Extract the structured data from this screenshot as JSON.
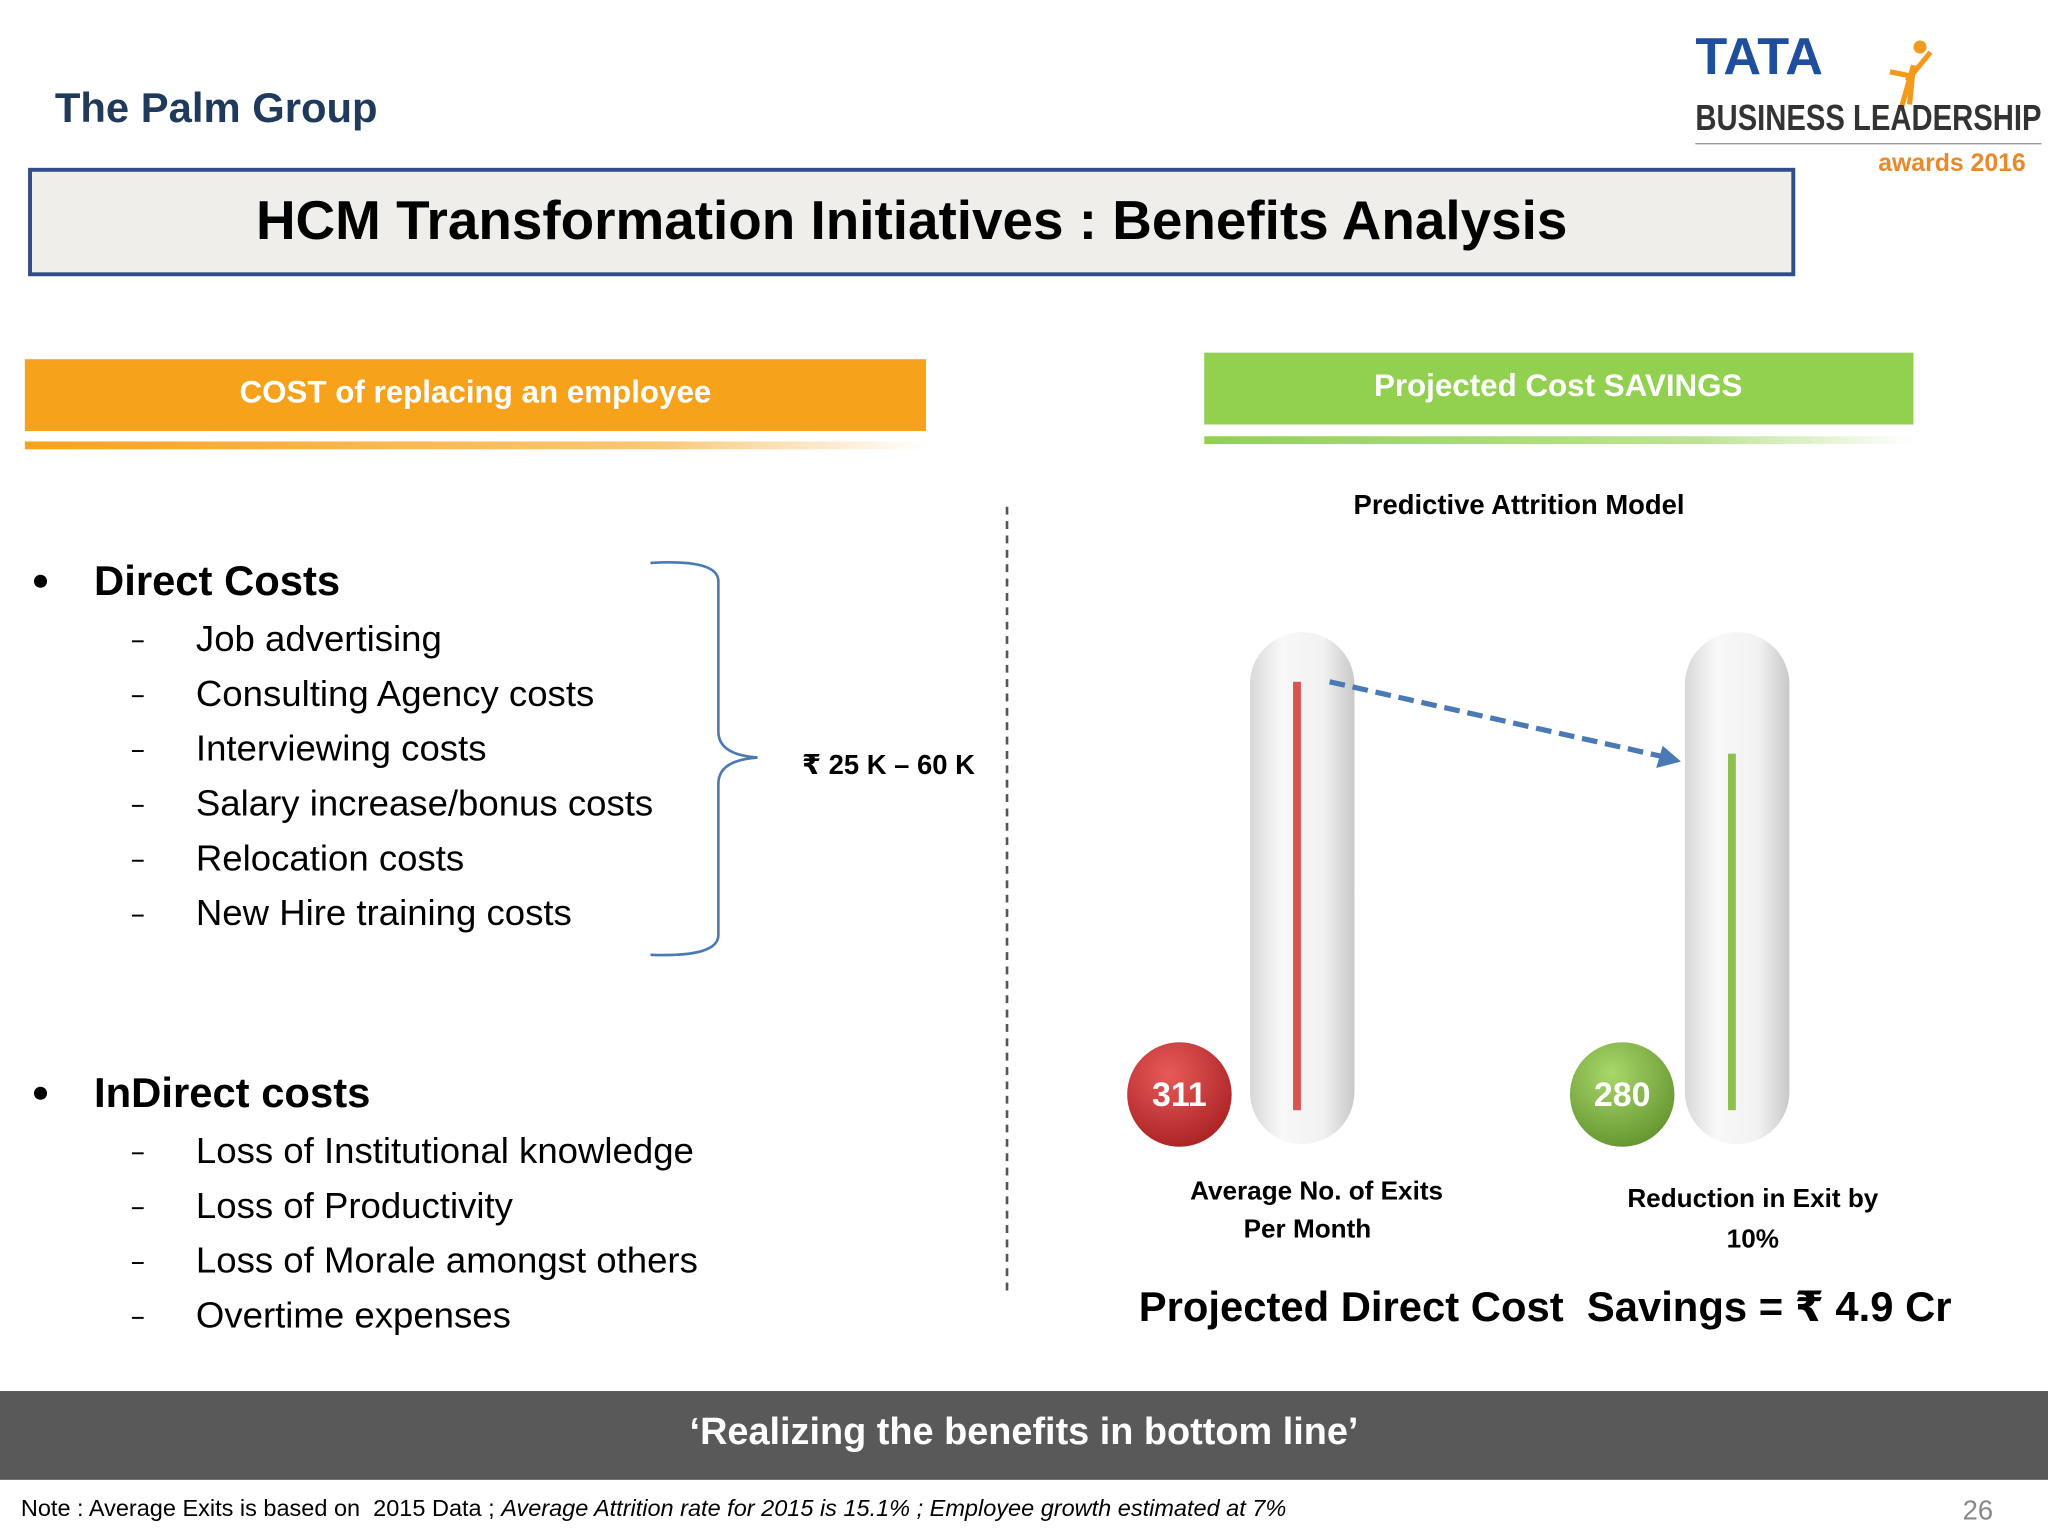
{
  "header": {
    "org": "The Palm Group",
    "logo": {
      "brand": "TATA",
      "line": "BUSINESS LEADERSHIP",
      "sub": "awards 2016"
    }
  },
  "title": "HCM Transformation Initiatives : Benefits Analysis",
  "left": {
    "heading": "COST of replacing an employee",
    "direct": {
      "label": "Direct Costs",
      "items": [
        "Job advertising",
        "Consulting Agency costs",
        "Interviewing costs",
        "Salary increase/bonus costs",
        "Relocation costs",
        "New Hire training costs"
      ]
    },
    "range": "₹ 25 K – 60 K",
    "indirect": {
      "label": "InDirect costs",
      "items": [
        "Loss of Institutional knowledge",
        "Loss of Productivity",
        "Loss of Morale amongst others",
        "Overtime expenses"
      ]
    }
  },
  "right": {
    "heading": "Projected Cost SAVINGS",
    "model_title": "Predictive Attrition Model",
    "gauges": [
      {
        "value": 311,
        "caption": [
          "Average No. of Exits",
          "Per Month"
        ]
      },
      {
        "value": 280,
        "caption": [
          "Reduction in Exit by",
          "10%"
        ]
      }
    ],
    "summary": "Projected Direct Cost  Savings = ₹ 4.9 Cr"
  },
  "banner": "‘Realizing the benefits in bottom line’",
  "note": {
    "plain": "Note : Average Exits is based on  2015 Data ; ",
    "italic": "Average Attrition rate for 2015 is 15.1% ; Employee growth estimated at 7%"
  },
  "page_number": 26
}
